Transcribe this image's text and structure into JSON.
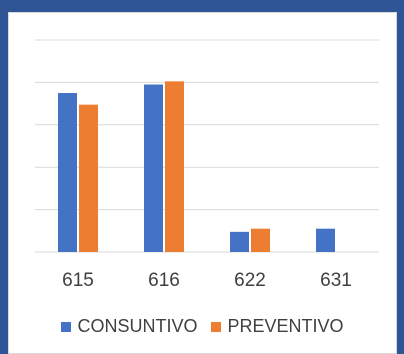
{
  "chart_data": {
    "type": "bar",
    "categories": [
      "615",
      "616",
      "622",
      "631"
    ],
    "series": [
      {
        "name": "CONSUNTIVO",
        "color": "#4472c4",
        "values": [
          150,
          158,
          19,
          22
        ]
      },
      {
        "name": "PREVENTIVO",
        "color": "#ed7d31",
        "values": [
          139,
          161,
          22,
          null
        ]
      }
    ],
    "ylim": [
      0,
      200
    ],
    "gridlines": 5,
    "grid": true,
    "legend": "bottom",
    "xlabel": "",
    "ylabel": "",
    "title": ""
  }
}
